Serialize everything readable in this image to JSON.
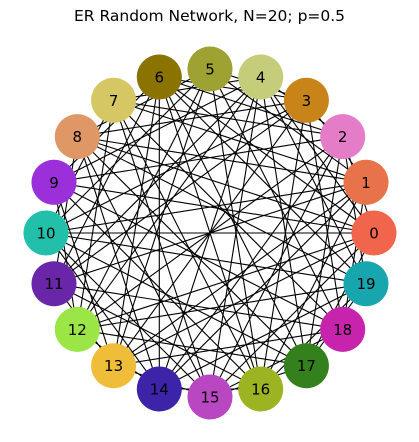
{
  "title": "ER Random Network, N=20; p=0.5",
  "graph": {
    "nodes": [
      {
        "id": 0,
        "label": "0",
        "color": "#f0654c"
      },
      {
        "id": 1,
        "label": "1",
        "color": "#e8734a"
      },
      {
        "id": 2,
        "label": "2",
        "color": "#e57cc8"
      },
      {
        "id": 3,
        "label": "3",
        "color": "#c98419"
      },
      {
        "id": 4,
        "label": "4",
        "color": "#c5cd7a"
      },
      {
        "id": 5,
        "label": "5",
        "color": "#9da232"
      },
      {
        "id": 6,
        "label": "6",
        "color": "#8b7300"
      },
      {
        "id": 7,
        "label": "7",
        "color": "#d5c764"
      },
      {
        "id": 8,
        "label": "8",
        "color": "#de9765"
      },
      {
        "id": 9,
        "label": "9",
        "color": "#9b2fd9"
      },
      {
        "id": 10,
        "label": "10",
        "color": "#22bfaa"
      },
      {
        "id": 11,
        "label": "11",
        "color": "#6a26a8"
      },
      {
        "id": 12,
        "label": "12",
        "color": "#9be547"
      },
      {
        "id": 13,
        "label": "13",
        "color": "#efbd37"
      },
      {
        "id": 14,
        "label": "14",
        "color": "#3c23a8"
      },
      {
        "id": 15,
        "label": "15",
        "color": "#b947c2"
      },
      {
        "id": 16,
        "label": "16",
        "color": "#9cb322"
      },
      {
        "id": 17,
        "label": "17",
        "color": "#34801c"
      },
      {
        "id": 18,
        "label": "18",
        "color": "#c823ac"
      },
      {
        "id": 19,
        "label": "19",
        "color": "#17a5ae"
      }
    ],
    "edges": [
      [
        0,
        2
      ],
      [
        0,
        4
      ],
      [
        0,
        6
      ],
      [
        0,
        8
      ],
      [
        0,
        9
      ],
      [
        0,
        10
      ],
      [
        0,
        12
      ],
      [
        0,
        13
      ],
      [
        0,
        15
      ],
      [
        0,
        17
      ],
      [
        1,
        3
      ],
      [
        1,
        5
      ],
      [
        1,
        7
      ],
      [
        1,
        8
      ],
      [
        1,
        10
      ],
      [
        1,
        11
      ],
      [
        1,
        13
      ],
      [
        1,
        14
      ],
      [
        1,
        16
      ],
      [
        1,
        18
      ],
      [
        2,
        4
      ],
      [
        2,
        6
      ],
      [
        2,
        7
      ],
      [
        2,
        9
      ],
      [
        2,
        12
      ],
      [
        2,
        14
      ],
      [
        2,
        15
      ],
      [
        2,
        17
      ],
      [
        2,
        19
      ],
      [
        3,
        5
      ],
      [
        3,
        6
      ],
      [
        3,
        8
      ],
      [
        3,
        10
      ],
      [
        3,
        11
      ],
      [
        3,
        13
      ],
      [
        3,
        16
      ],
      [
        3,
        18
      ],
      [
        4,
        7
      ],
      [
        4,
        9
      ],
      [
        4,
        11
      ],
      [
        4,
        12
      ],
      [
        4,
        14
      ],
      [
        4,
        15
      ],
      [
        4,
        17
      ],
      [
        4,
        19
      ],
      [
        5,
        8
      ],
      [
        5,
        10
      ],
      [
        5,
        12
      ],
      [
        5,
        13
      ],
      [
        5,
        16
      ],
      [
        5,
        18
      ],
      [
        6,
        9
      ],
      [
        6,
        11
      ],
      [
        6,
        13
      ],
      [
        6,
        14
      ],
      [
        6,
        16
      ],
      [
        6,
        17
      ],
      [
        6,
        19
      ],
      [
        7,
        10
      ],
      [
        7,
        12
      ],
      [
        7,
        15
      ],
      [
        7,
        16
      ],
      [
        7,
        18
      ],
      [
        8,
        11
      ],
      [
        8,
        14
      ],
      [
        8,
        15
      ],
      [
        8,
        17
      ],
      [
        8,
        19
      ],
      [
        9,
        12
      ],
      [
        9,
        13
      ],
      [
        9,
        16
      ],
      [
        9,
        18
      ],
      [
        10,
        14
      ],
      [
        10,
        15
      ],
      [
        10,
        17
      ],
      [
        10,
        19
      ],
      [
        11,
        13
      ],
      [
        11,
        16
      ],
      [
        11,
        18
      ],
      [
        12,
        14
      ],
      [
        12,
        17
      ],
      [
        12,
        19
      ],
      [
        13,
        15
      ],
      [
        13,
        18
      ],
      [
        14,
        16
      ],
      [
        14,
        19
      ],
      [
        15,
        17
      ],
      [
        15,
        18
      ],
      [
        16,
        19
      ],
      [
        17,
        19
      ]
    ]
  }
}
